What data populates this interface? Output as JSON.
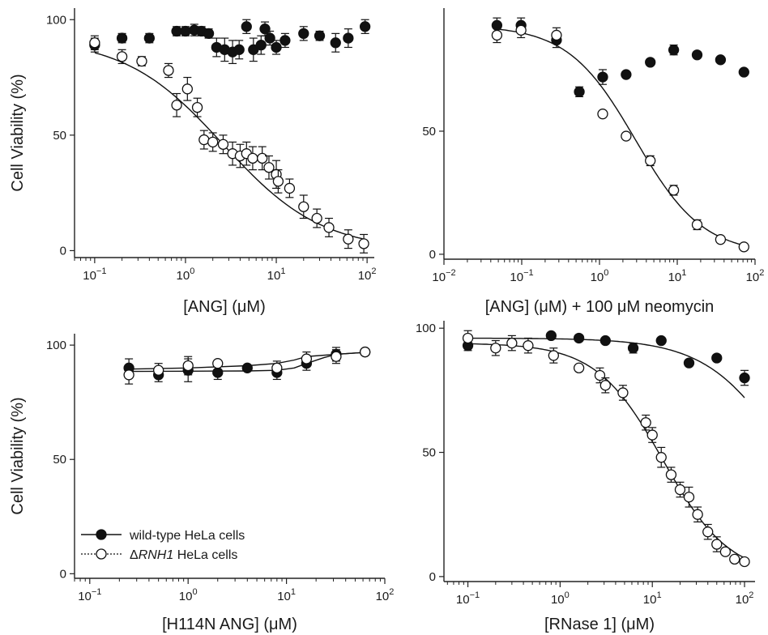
{
  "figure": {
    "legend": {
      "entries": [
        {
          "series_id": "wt",
          "name": "wild-type HeLa cells",
          "marker": "filled-circle",
          "line": "solid"
        },
        {
          "series_id": "ko",
          "name_prefix": "Δ",
          "name_italic": "RNH1",
          "name_suffix": " HeLa cells",
          "marker": "open-circle",
          "line": "dotted"
        }
      ]
    }
  },
  "chart_data": [
    {
      "type": "scatter",
      "panel": "top-left",
      "xlabel": "[ANG] (μM)",
      "ylabel": "Cell Viability (%)",
      "xscale": "log",
      "xlim": [
        0.06,
        120
      ],
      "ylim": [
        -3,
        105
      ],
      "xticks": [
        {
          "v": 0.1,
          "base": "10",
          "exp": "−1"
        },
        {
          "v": 1,
          "base": "10",
          "exp": "0"
        },
        {
          "v": 10,
          "base": "10",
          "exp": "1"
        },
        {
          "v": 100,
          "base": "10",
          "exp": "2"
        }
      ],
      "yticks": [
        {
          "v": 0,
          "label": "0"
        },
        {
          "v": 50,
          "label": "50"
        },
        {
          "v": 100,
          "label": "100"
        }
      ],
      "series": [
        {
          "id": "wt",
          "marker": "filled",
          "x": [
            0.1,
            0.2,
            0.4,
            0.8,
            1.0,
            1.25,
            1.5,
            1.8,
            2.2,
            2.7,
            3.3,
            3.9,
            4.7,
            5.6,
            6.8,
            7.5,
            8.5,
            10,
            12.5,
            20,
            30,
            45,
            62,
            95
          ],
          "y": [
            89,
            92,
            92,
            95,
            95,
            95.5,
            95,
            94,
            88,
            87,
            86,
            87,
            97,
            87,
            89,
            96,
            92,
            88,
            91,
            94,
            93,
            90,
            92,
            97
          ],
          "err": [
            3,
            2,
            2,
            2,
            2,
            2.5,
            2,
            2,
            4,
            5,
            5,
            4,
            3,
            5,
            4,
            3,
            3,
            3,
            3,
            3,
            2,
            4,
            4,
            3
          ]
        },
        {
          "id": "ko",
          "marker": "open",
          "x": [
            0.1,
            0.2,
            0.33,
            0.65,
            0.8,
            1.05,
            1.35,
            1.6,
            2.0,
            2.6,
            3.3,
            4.0,
            4.7,
            5.5,
            7.0,
            8.3,
            10,
            10.5,
            14,
            20,
            28,
            38,
            62,
            92
          ],
          "y": [
            90,
            84,
            82,
            78,
            63,
            70,
            62,
            48,
            47,
            46,
            42,
            41,
            42,
            40,
            40,
            36,
            33,
            30,
            27,
            19,
            14,
            10,
            5,
            3
          ],
          "err": [
            3,
            3,
            2,
            3,
            5,
            5,
            4,
            4,
            4,
            4,
            5,
            5,
            5,
            5,
            5,
            5,
            6,
            5,
            4,
            5,
            4,
            4,
            4,
            4
          ]
        },
        {
          "id": "ko-fit",
          "kind": "fit",
          "ic50": 2.6,
          "hill": 0.8,
          "top": 92,
          "bottom": 0,
          "xmin": 0.1,
          "xmax": 95
        }
      ]
    },
    {
      "type": "scatter",
      "panel": "top-right",
      "xlabel": "[ANG] (μM) + 100 μM neomycin",
      "ylabel": "",
      "xscale": "log",
      "xlim": [
        0.01,
        100
      ],
      "ylim": [
        -2,
        100
      ],
      "xticks": [
        {
          "v": 0.01,
          "base": "10",
          "exp": "−2"
        },
        {
          "v": 0.1,
          "base": "10",
          "exp": "−1"
        },
        {
          "v": 1,
          "base": "10",
          "exp": "0"
        },
        {
          "v": 10,
          "base": "10",
          "exp": "1"
        },
        {
          "v": 100,
          "base": "10",
          "exp": "2"
        }
      ],
      "yticks": [
        {
          "v": 0,
          "label": "0"
        },
        {
          "v": 50,
          "label": "50"
        }
      ],
      "series": [
        {
          "id": "wt",
          "marker": "filled",
          "x": [
            0.048,
            0.098,
            0.28,
            0.55,
            1.1,
            2.2,
            4.5,
            9,
            18,
            36,
            72
          ],
          "y": [
            93,
            93,
            87,
            66,
            72,
            73,
            78,
            83,
            81,
            79,
            74
          ],
          "err": [
            3,
            3,
            3,
            2,
            3,
            0,
            0,
            2,
            0,
            0,
            0
          ]
        },
        {
          "id": "ko",
          "marker": "open",
          "x": [
            0.048,
            0.098,
            0.28,
            1.1,
            2.2,
            4.5,
            9,
            18,
            36,
            72
          ],
          "y": [
            89,
            91,
            89,
            57,
            48,
            38,
            26,
            12,
            6,
            3
          ],
          "err": [
            3,
            3,
            3,
            0,
            0,
            2,
            2,
            2,
            0,
            0
          ]
        },
        {
          "id": "ko-fit",
          "kind": "fit",
          "ic50": 2.9,
          "hill": 1.0,
          "top": 93,
          "bottom": 0,
          "xmin": 0.048,
          "xmax": 72
        }
      ]
    },
    {
      "type": "scatter",
      "panel": "bottom-left",
      "xlabel": "[H114N ANG] (μM)",
      "ylabel": "Cell Viability (%)",
      "xscale": "log",
      "xlim": [
        0.07,
        100
      ],
      "ylim": [
        -2,
        105
      ],
      "xticks": [
        {
          "v": 0.1,
          "base": "10",
          "exp": "−1"
        },
        {
          "v": 1,
          "base": "10",
          "exp": "0"
        },
        {
          "v": 10,
          "base": "10",
          "exp": "1"
        },
        {
          "v": 100,
          "base": "10",
          "exp": "2"
        }
      ],
      "yticks": [
        {
          "v": 0,
          "label": "0"
        },
        {
          "v": 50,
          "label": "50"
        },
        {
          "v": 100,
          "label": "100"
        }
      ],
      "series": [
        {
          "id": "wt",
          "marker": "filled",
          "x": [
            0.25,
            0.5,
            1,
            2,
            4,
            8,
            16,
            32,
            63
          ],
          "y": [
            90,
            87,
            89,
            88,
            90,
            88,
            92,
            96,
            97
          ],
          "err": [
            4,
            3,
            5,
            3,
            0,
            3,
            3,
            3,
            1
          ]
        },
        {
          "id": "ko",
          "marker": "open",
          "x": [
            0.25,
            0.5,
            1,
            2,
            8,
            16,
            32,
            63
          ],
          "y": [
            87,
            89,
            91,
            92,
            90,
            94,
            95,
            97
          ],
          "err": [
            4,
            3,
            4,
            0,
            3,
            3,
            3,
            1
          ]
        },
        {
          "id": "wt-fit",
          "kind": "line",
          "x": [
            0.25,
            1,
            4,
            8,
            12,
            16,
            24,
            32,
            63
          ],
          "y": [
            88.5,
            88.6,
            88.7,
            89,
            90,
            92,
            94.5,
            96,
            96.8
          ]
        },
        {
          "id": "ko-fit",
          "kind": "line",
          "x": [
            0.25,
            1,
            2,
            4,
            8,
            12,
            16,
            32,
            63
          ],
          "y": [
            89.5,
            90,
            90.5,
            91,
            92,
            93.5,
            95,
            96,
            96.8
          ]
        }
      ]
    },
    {
      "type": "scatter",
      "panel": "bottom-right",
      "xlabel": "[RNase 1] (μM)",
      "ylabel": "",
      "xscale": "log",
      "xlim": [
        0.055,
        130
      ],
      "ylim": [
        -2,
        103
      ],
      "xticks": [
        {
          "v": 0.1,
          "base": "10",
          "exp": "−1"
        },
        {
          "v": 1,
          "base": "10",
          "exp": "0"
        },
        {
          "v": 10,
          "base": "10",
          "exp": "1"
        },
        {
          "v": 100,
          "base": "10",
          "exp": "2"
        }
      ],
      "yticks": [
        {
          "v": 0,
          "label": "0"
        },
        {
          "v": 50,
          "label": "50"
        },
        {
          "v": 100,
          "label": "100"
        }
      ],
      "series": [
        {
          "id": "wt",
          "marker": "filled",
          "x": [
            0.1,
            0.8,
            1.6,
            3.1,
            6.2,
            12.5,
            25,
            50,
            100
          ],
          "y": [
            93,
            97,
            96,
            95,
            92,
            95,
            86,
            88,
            80
          ],
          "err": [
            2,
            0,
            0,
            0,
            2,
            0,
            0,
            0,
            3
          ]
        },
        {
          "id": "ko",
          "marker": "open",
          "x": [
            0.1,
            0.2,
            0.3,
            0.45,
            0.85,
            1.6,
            2.7,
            3.1,
            4.8,
            8.5,
            10,
            12.5,
            16,
            20,
            25,
            31,
            40,
            50,
            62,
            78,
            100
          ],
          "y": [
            96,
            92,
            94,
            93,
            89,
            84,
            81,
            77,
            74,
            62,
            57,
            48,
            41,
            35,
            32,
            25,
            18,
            13,
            10,
            7,
            6
          ],
          "err": [
            3,
            3,
            3,
            3,
            3,
            0,
            3,
            3,
            3,
            3,
            3,
            4,
            3,
            3,
            4,
            3,
            3,
            3,
            0,
            0,
            0
          ]
        },
        {
          "id": "wt-fit",
          "kind": "fit",
          "ic50": 300,
          "hill": 1.0,
          "top": 96,
          "bottom": 0,
          "xmin": 0.1,
          "xmax": 100
        },
        {
          "id": "ko-fit",
          "kind": "fit",
          "ic50": 13,
          "hill": 1.2,
          "top": 94,
          "bottom": 0,
          "xmin": 0.1,
          "xmax": 100
        }
      ]
    }
  ]
}
